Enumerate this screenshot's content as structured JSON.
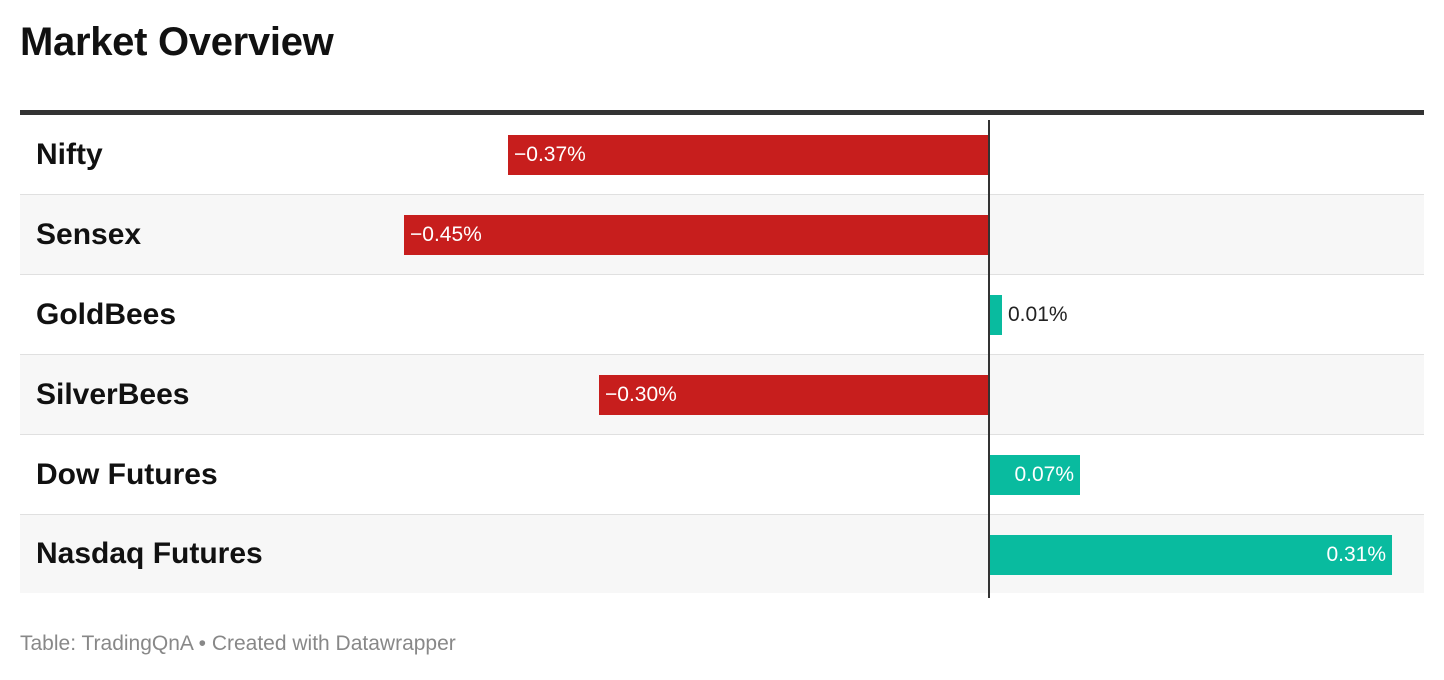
{
  "title": "Market Overview",
  "footer": {
    "source": "Table: TradingQnA",
    "separator": "•",
    "credit": "Created with Datawrapper"
  },
  "colors": {
    "negative": "#c71e1d",
    "positive": "#09bb9f"
  },
  "chart_data": {
    "type": "bar",
    "orientation": "horizontal",
    "categories": [
      "Nifty",
      "Sensex",
      "GoldBees",
      "SilverBees",
      "Dow Futures",
      "Nasdaq Futures"
    ],
    "values": [
      -0.37,
      -0.45,
      0.01,
      -0.3,
      0.07,
      0.31
    ],
    "value_labels": [
      "−0.37%",
      "−0.45%",
      "0.01%",
      "−0.30%",
      "0.07%",
      "0.31%"
    ],
    "xlim": [
      -0.45,
      0.31
    ],
    "grid": false
  }
}
